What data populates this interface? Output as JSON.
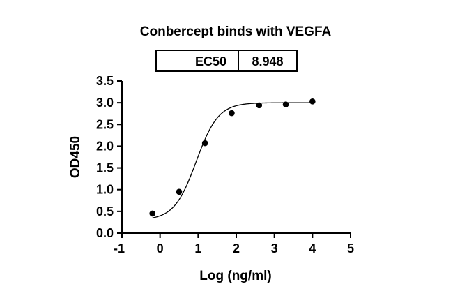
{
  "chart_data": {
    "type": "scatter",
    "title": "Conbercept binds with VEGFA",
    "xlabel": "Log (ng/ml)",
    "ylabel": "OD450",
    "xlim": [
      -1,
      5
    ],
    "ylim": [
      0,
      3.5
    ],
    "x_ticks": [
      "-1",
      "0",
      "1",
      "2",
      "3",
      "4",
      "5"
    ],
    "y_ticks": [
      "0.0",
      "0.5",
      "1.0",
      "1.5",
      "2.0",
      "2.5",
      "3.0",
      "3.5"
    ],
    "grid": false,
    "series": [
      {
        "x": [
          -0.2,
          0.5,
          1.18,
          1.88,
          2.6,
          3.3,
          4.0
        ],
        "y": [
          0.45,
          0.95,
          2.07,
          2.76,
          2.94,
          2.96,
          3.03
        ]
      }
    ],
    "fit": {
      "model": "four-parameter logistic",
      "bottom": 0.3,
      "top": 3.0,
      "log_ec50": 0.95,
      "hill_slope": 1.5
    },
    "ec50_table": {
      "label": "EC50",
      "value": "8.948"
    },
    "colors": {
      "axis": "#000000",
      "points": "#000000",
      "curve": "#000000"
    }
  }
}
